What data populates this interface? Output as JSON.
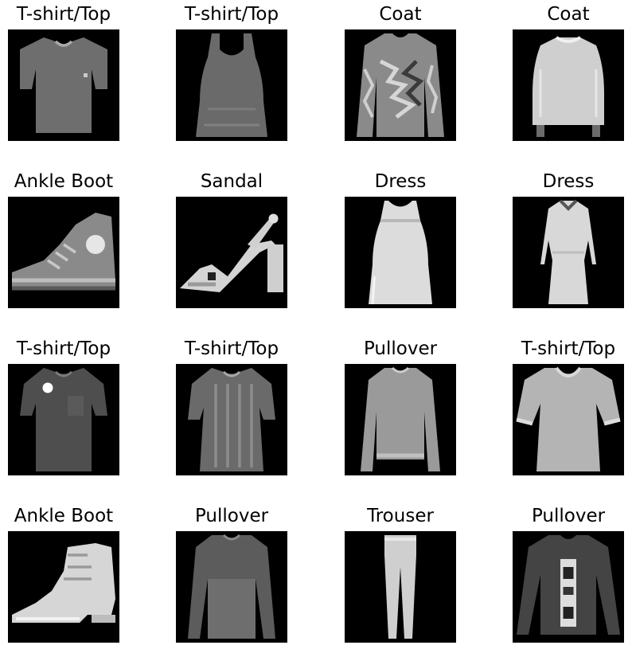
{
  "items": [
    {
      "label": "T-shirt/Top",
      "icon": "tshirt-image"
    },
    {
      "label": "T-shirt/Top",
      "icon": "tank-top-image"
    },
    {
      "label": "Coat",
      "icon": "coat-image"
    },
    {
      "label": "Coat",
      "icon": "coat-image"
    },
    {
      "label": "Ankle Boot",
      "icon": "sneaker-boot-image"
    },
    {
      "label": "Sandal",
      "icon": "sandal-image"
    },
    {
      "label": "Dress",
      "icon": "dress-image"
    },
    {
      "label": "Dress",
      "icon": "long-sleeve-dress-image"
    },
    {
      "label": "T-shirt/Top",
      "icon": "tshirt-image"
    },
    {
      "label": "T-shirt/Top",
      "icon": "tshirt-image"
    },
    {
      "label": "Pullover",
      "icon": "pullover-image"
    },
    {
      "label": "T-shirt/Top",
      "icon": "tshirt-image"
    },
    {
      "label": "Ankle Boot",
      "icon": "ankle-boot-image"
    },
    {
      "label": "Pullover",
      "icon": "pullover-image"
    },
    {
      "label": "Trouser",
      "icon": "trouser-image"
    },
    {
      "label": "Pullover",
      "icon": "pullover-image"
    }
  ],
  "colors": {
    "background": "#000000",
    "text": "#000000"
  }
}
